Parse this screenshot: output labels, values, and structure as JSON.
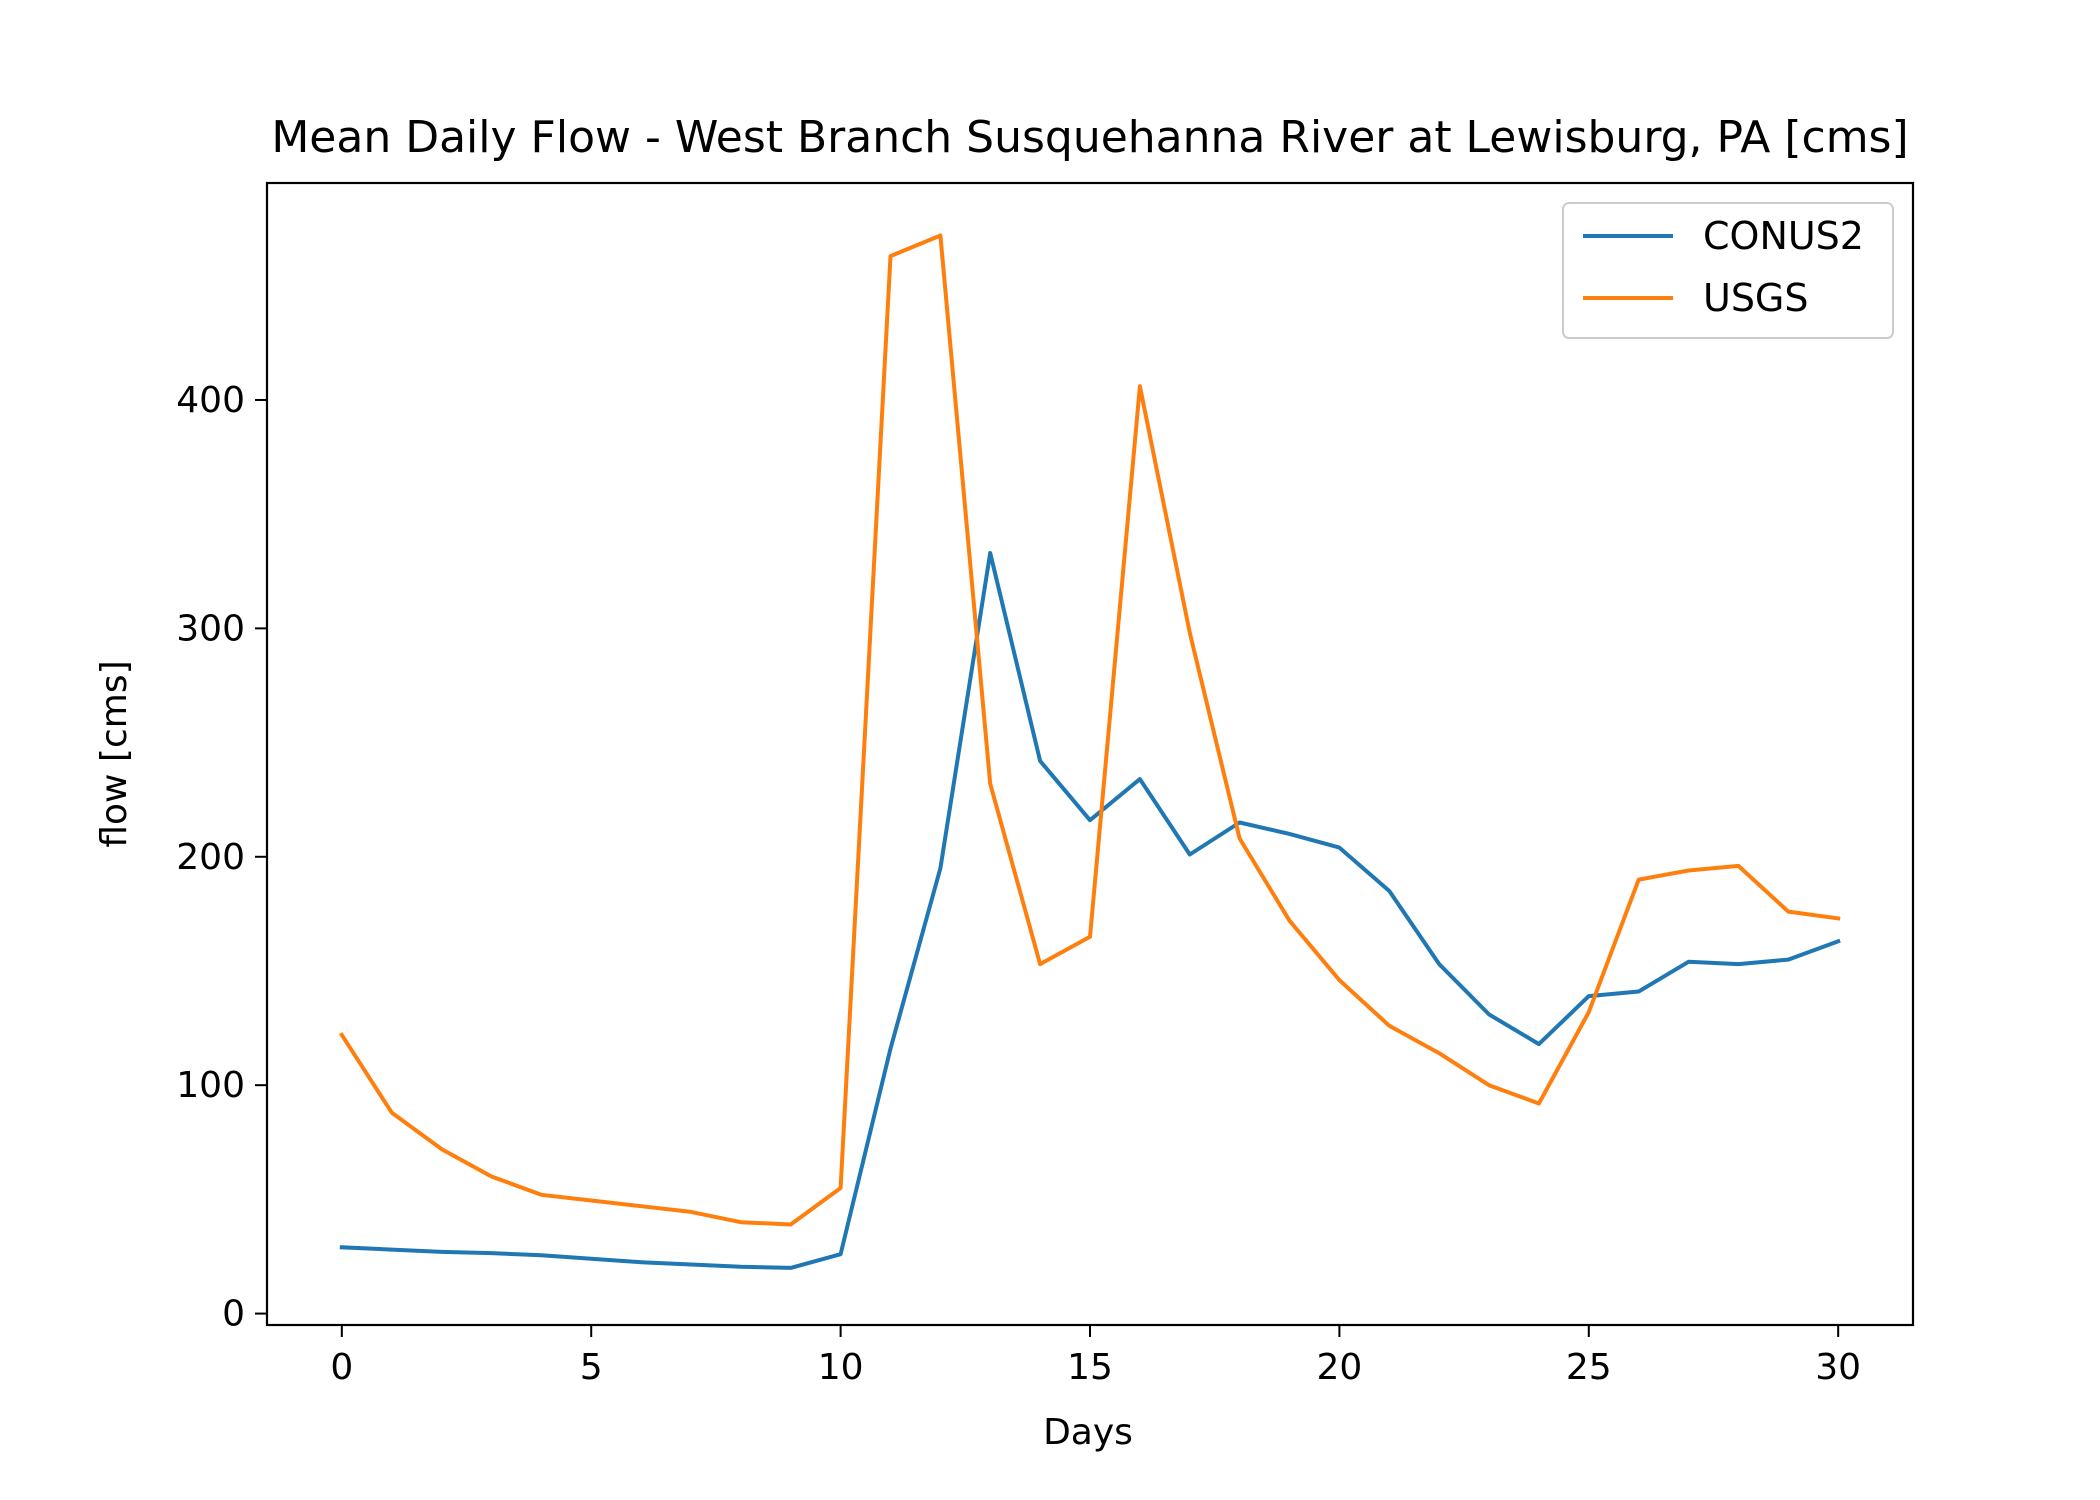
{
  "chart_data": {
    "type": "line",
    "title": "Mean Daily Flow - West Branch Susquehanna River at Lewisburg, PA [cms]",
    "xlabel": "Days",
    "ylabel": "flow [cms]",
    "xlim": [
      -1.5,
      31.5
    ],
    "ylim": [
      -5,
      495
    ],
    "xticks": [
      0,
      5,
      10,
      15,
      20,
      25,
      30
    ],
    "yticks": [
      0,
      100,
      200,
      300,
      400
    ],
    "legend_position": "top-right",
    "grid": false,
    "x": [
      0,
      1,
      2,
      3,
      4,
      5,
      6,
      7,
      8,
      9,
      10,
      11,
      12,
      13,
      14,
      15,
      16,
      17,
      18,
      19,
      20,
      21,
      22,
      23,
      24,
      25,
      26,
      27,
      28,
      29,
      30
    ],
    "series": [
      {
        "name": "CONUS2",
        "color": "#1f77b4",
        "values": [
          29,
          28,
          27,
          26.5,
          25.5,
          24,
          22.5,
          21.5,
          20.5,
          20,
          26,
          116,
          195,
          333,
          242,
          216,
          234,
          201,
          215,
          210,
          204,
          185,
          153,
          131,
          118,
          139,
          141,
          154,
          153,
          155,
          163
        ]
      },
      {
        "name": "USGS",
        "color": "#ff7f0e",
        "values": [
          122,
          88,
          72,
          60,
          52,
          49.5,
          47,
          44.5,
          40,
          39,
          55,
          463,
          472,
          232,
          153,
          165,
          406,
          298,
          208,
          172,
          146,
          126,
          114,
          100,
          92,
          132,
          190,
          194,
          196,
          176,
          173
        ]
      }
    ]
  }
}
